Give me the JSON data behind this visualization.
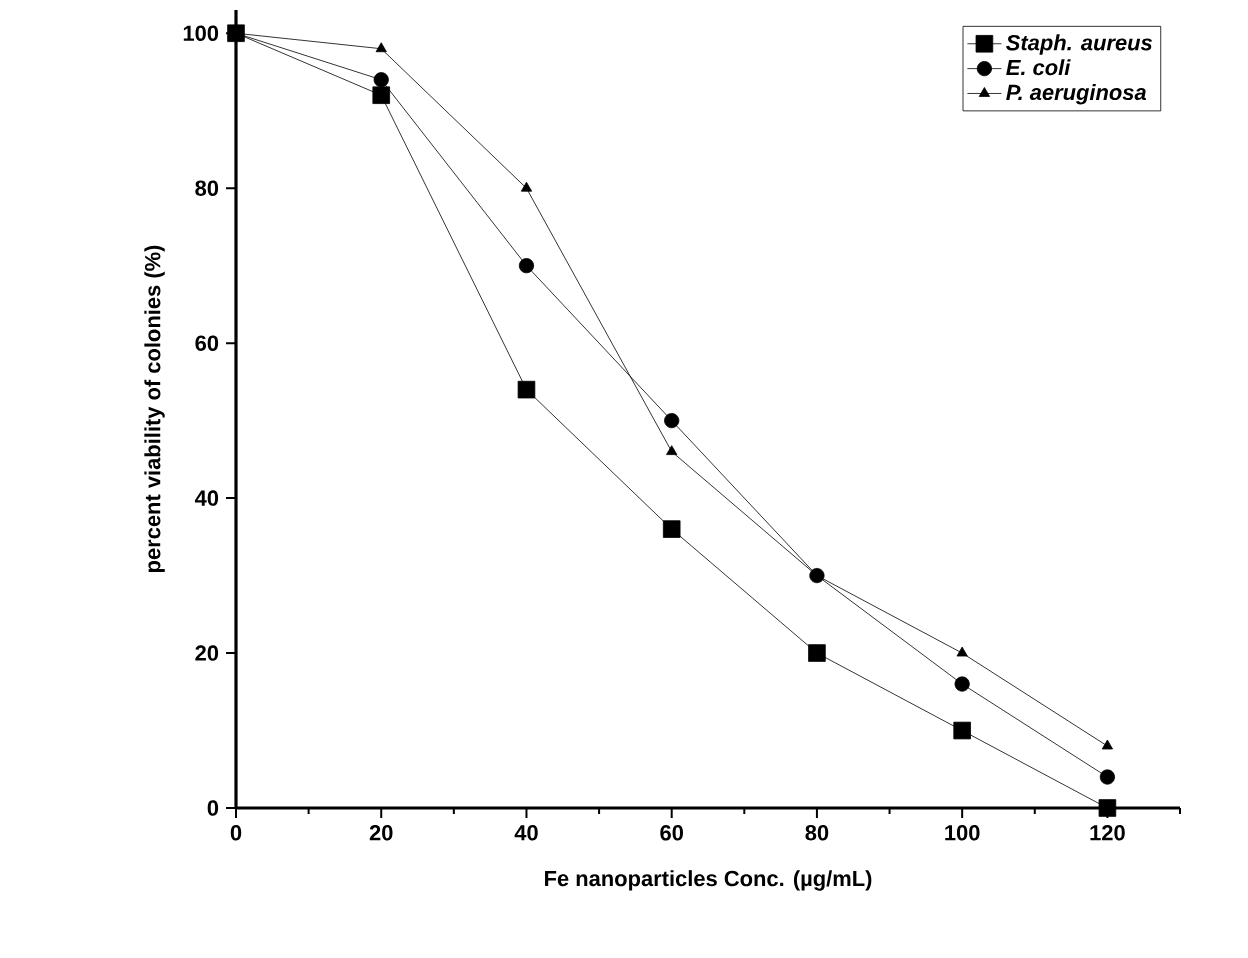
{
  "chart_data": {
    "type": "line",
    "xlabel": "Fe nanoparticles Conc. (µg/mL)",
    "ylabel": "percent viability of colonies (%)",
    "x": [
      0,
      20,
      40,
      60,
      80,
      100,
      120
    ],
    "series": [
      {
        "name": "Staph. aureus",
        "color": "#000000",
        "marker": "square",
        "values": [
          100,
          92,
          54,
          36,
          20,
          10,
          0
        ]
      },
      {
        "name": "E. coli",
        "color": "#000000",
        "marker": "circle",
        "values": [
          100,
          94,
          70,
          50,
          30,
          16,
          4
        ]
      },
      {
        "name": "P. aeruginosa",
        "color": "#000000",
        "marker": "triangle",
        "values": [
          100,
          98,
          80,
          46,
          30,
          20,
          8
        ]
      }
    ],
    "xlim": [
      0,
      130
    ],
    "ylim": [
      0,
      103
    ],
    "xticks": [
      0,
      20,
      40,
      60,
      80,
      100,
      120
    ],
    "yticks": [
      0,
      20,
      40,
      60,
      80,
      100
    ],
    "grid": false,
    "legend": "top right",
    "line_style": "solid"
  }
}
